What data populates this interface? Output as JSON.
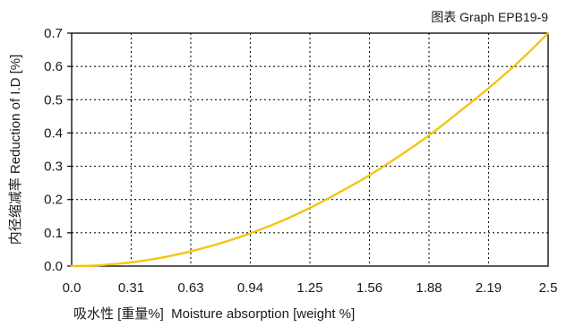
{
  "chart_data": {
    "type": "line",
    "title": "图表 Graph EPB19-9",
    "xlabel": "吸水性 [重量%]  Moisture absorption [weight %]",
    "ylabel": "内径缩减率 Reduction of I.D [%]",
    "xlim": [
      0,
      2.5
    ],
    "ylim": [
      0,
      0.7
    ],
    "x_ticks": [
      "0.0",
      "0.31",
      "0.63",
      "0.94",
      "1.25",
      "1.56",
      "1.88",
      "2.19",
      "2.5"
    ],
    "y_ticks": [
      "0.0",
      "0.1",
      "0.2",
      "0.3",
      "0.4",
      "0.5",
      "0.6",
      "0.7"
    ],
    "grid": true,
    "series": [
      {
        "color": "#f2c511",
        "x": [
          0.0,
          0.1,
          0.2,
          0.31,
          0.45,
          0.63,
          0.8,
          0.94,
          1.1,
          1.25,
          1.4,
          1.56,
          1.72,
          1.88,
          2.03,
          2.19,
          2.35,
          2.5
        ],
        "y": [
          0.0,
          0.001,
          0.005,
          0.011,
          0.023,
          0.045,
          0.072,
          0.099,
          0.135,
          0.175,
          0.22,
          0.272,
          0.331,
          0.395,
          0.462,
          0.536,
          0.616,
          0.7
        ]
      }
    ]
  }
}
